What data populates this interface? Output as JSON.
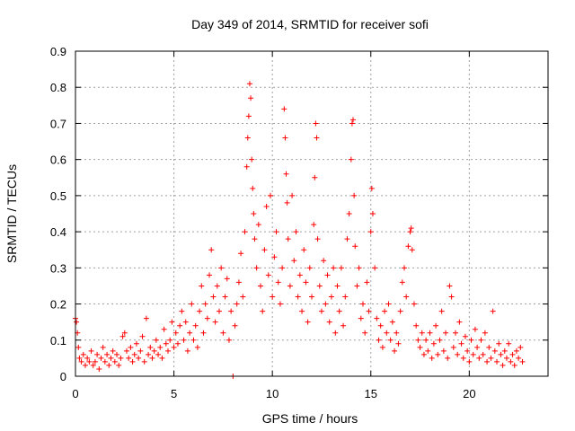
{
  "chart_data": {
    "type": "scatter",
    "title": "Day 349 of 2014, SRMTID for receiver sofi",
    "xlabel": "GPS time / hours",
    "ylabel": "SRMTID / TECUs",
    "xlim": [
      0,
      24
    ],
    "ylim": [
      0,
      0.9
    ],
    "x_ticks": [
      0,
      5,
      10,
      15,
      20
    ],
    "x_tick_labels": [
      "0",
      "5",
      "10",
      "15",
      "20"
    ],
    "y_ticks": [
      0,
      0.1,
      0.2,
      0.3,
      0.4,
      0.5,
      0.6,
      0.7,
      0.8,
      0.9
    ],
    "y_tick_labels": [
      "0",
      "0.1",
      "0.2",
      "0.3",
      "0.4",
      "0.5",
      "0.6",
      "0.7",
      "0.8",
      "0.9"
    ],
    "grid": true,
    "marker": "plus",
    "color": "#ff0000",
    "series": [
      {
        "name": "SRMTID",
        "points": [
          [
            0.0,
            0.16
          ],
          [
            0.05,
            0.15
          ],
          [
            0.1,
            0.12
          ],
          [
            0.15,
            0.08
          ],
          [
            0.2,
            0.05
          ],
          [
            0.3,
            0.04
          ],
          [
            0.4,
            0.06
          ],
          [
            0.5,
            0.03
          ],
          [
            0.6,
            0.05
          ],
          [
            0.7,
            0.04
          ],
          [
            0.8,
            0.07
          ],
          [
            0.9,
            0.03
          ],
          [
            1.0,
            0.04
          ],
          [
            1.1,
            0.06
          ],
          [
            1.2,
            0.02
          ],
          [
            1.3,
            0.05
          ],
          [
            1.4,
            0.08
          ],
          [
            1.5,
            0.04
          ],
          [
            1.6,
            0.06
          ],
          [
            1.7,
            0.03
          ],
          [
            1.8,
            0.05
          ],
          [
            1.9,
            0.07
          ],
          [
            2.0,
            0.04
          ],
          [
            2.1,
            0.06
          ],
          [
            2.2,
            0.03
          ],
          [
            2.3,
            0.05
          ],
          [
            2.4,
            0.11
          ],
          [
            2.5,
            0.12
          ],
          [
            2.6,
            0.07
          ],
          [
            2.7,
            0.05
          ],
          [
            2.8,
            0.08
          ],
          [
            2.9,
            0.04
          ],
          [
            3.0,
            0.06
          ],
          [
            3.1,
            0.09
          ],
          [
            3.2,
            0.05
          ],
          [
            3.3,
            0.07
          ],
          [
            3.4,
            0.11
          ],
          [
            3.5,
            0.04
          ],
          [
            3.6,
            0.16
          ],
          [
            3.7,
            0.06
          ],
          [
            3.8,
            0.08
          ],
          [
            3.9,
            0.05
          ],
          [
            4.0,
            0.07
          ],
          [
            4.1,
            0.1
          ],
          [
            4.2,
            0.06
          ],
          [
            4.3,
            0.08
          ],
          [
            4.4,
            0.05
          ],
          [
            4.5,
            0.13
          ],
          [
            4.6,
            0.09
          ],
          [
            4.7,
            0.07
          ],
          [
            4.8,
            0.1
          ],
          [
            4.9,
            0.15
          ],
          [
            5.0,
            0.08
          ],
          [
            5.1,
            0.12
          ],
          [
            5.2,
            0.09
          ],
          [
            5.3,
            0.14
          ],
          [
            5.4,
            0.18
          ],
          [
            5.5,
            0.1
          ],
          [
            5.6,
            0.15
          ],
          [
            5.7,
            0.07
          ],
          [
            5.8,
            0.12
          ],
          [
            5.9,
            0.2
          ],
          [
            6.0,
            0.1
          ],
          [
            6.1,
            0.14
          ],
          [
            6.2,
            0.08
          ],
          [
            6.3,
            0.18
          ],
          [
            6.4,
            0.25
          ],
          [
            6.5,
            0.12
          ],
          [
            6.6,
            0.2
          ],
          [
            6.7,
            0.16
          ],
          [
            6.8,
            0.28
          ],
          [
            6.9,
            0.35
          ],
          [
            7.0,
            0.22
          ],
          [
            7.1,
            0.15
          ],
          [
            7.2,
            0.25
          ],
          [
            7.3,
            0.18
          ],
          [
            7.4,
            0.3
          ],
          [
            7.5,
            0.12
          ],
          [
            7.6,
            0.22
          ],
          [
            7.7,
            0.27
          ],
          [
            7.8,
            0.1
          ],
          [
            7.9,
            0.18
          ],
          [
            8.0,
            0.0
          ],
          [
            8.1,
            0.14
          ],
          [
            8.2,
            0.2
          ],
          [
            8.3,
            0.26
          ],
          [
            8.4,
            0.34
          ],
          [
            8.5,
            0.22
          ],
          [
            8.6,
            0.4
          ],
          [
            8.7,
            0.58
          ],
          [
            8.75,
            0.66
          ],
          [
            8.8,
            0.72
          ],
          [
            8.85,
            0.81
          ],
          [
            8.9,
            0.77
          ],
          [
            8.95,
            0.6
          ],
          [
            9.0,
            0.52
          ],
          [
            9.05,
            0.45
          ],
          [
            9.1,
            0.38
          ],
          [
            9.2,
            0.3
          ],
          [
            9.3,
            0.42
          ],
          [
            9.4,
            0.25
          ],
          [
            9.5,
            0.18
          ],
          [
            9.6,
            0.35
          ],
          [
            9.7,
            0.47
          ],
          [
            9.8,
            0.28
          ],
          [
            9.9,
            0.5
          ],
          [
            10.0,
            0.22
          ],
          [
            10.1,
            0.33
          ],
          [
            10.2,
            0.4
          ],
          [
            10.3,
            0.26
          ],
          [
            10.4,
            0.2
          ],
          [
            10.5,
            0.3
          ],
          [
            10.6,
            0.74
          ],
          [
            10.65,
            0.66
          ],
          [
            10.7,
            0.56
          ],
          [
            10.75,
            0.48
          ],
          [
            10.8,
            0.38
          ],
          [
            10.9,
            0.25
          ],
          [
            11.0,
            0.5
          ],
          [
            11.1,
            0.32
          ],
          [
            11.2,
            0.4
          ],
          [
            11.3,
            0.22
          ],
          [
            11.4,
            0.28
          ],
          [
            11.5,
            0.18
          ],
          [
            11.6,
            0.35
          ],
          [
            11.7,
            0.26
          ],
          [
            11.8,
            0.15
          ],
          [
            11.9,
            0.3
          ],
          [
            12.0,
            0.22
          ],
          [
            12.1,
            0.42
          ],
          [
            12.15,
            0.55
          ],
          [
            12.2,
            0.7
          ],
          [
            12.25,
            0.66
          ],
          [
            12.3,
            0.38
          ],
          [
            12.4,
            0.25
          ],
          [
            12.5,
            0.18
          ],
          [
            12.6,
            0.32
          ],
          [
            12.7,
            0.2
          ],
          [
            12.8,
            0.28
          ],
          [
            12.9,
            0.15
          ],
          [
            13.0,
            0.22
          ],
          [
            13.1,
            0.3
          ],
          [
            13.2,
            0.12
          ],
          [
            13.3,
            0.25
          ],
          [
            13.4,
            0.18
          ],
          [
            13.5,
            0.3
          ],
          [
            13.6,
            0.14
          ],
          [
            13.7,
            0.22
          ],
          [
            13.8,
            0.38
          ],
          [
            13.9,
            0.45
          ],
          [
            14.0,
            0.6
          ],
          [
            14.05,
            0.7
          ],
          [
            14.1,
            0.71
          ],
          [
            14.15,
            0.5
          ],
          [
            14.2,
            0.36
          ],
          [
            14.3,
            0.25
          ],
          [
            14.4,
            0.3
          ],
          [
            14.5,
            0.16
          ],
          [
            14.6,
            0.2
          ],
          [
            14.7,
            0.12
          ],
          [
            14.8,
            0.26
          ],
          [
            14.9,
            0.18
          ],
          [
            15.0,
            0.4
          ],
          [
            15.05,
            0.52
          ],
          [
            15.1,
            0.45
          ],
          [
            15.2,
            0.3
          ],
          [
            15.3,
            0.16
          ],
          [
            15.4,
            0.1
          ],
          [
            15.5,
            0.14
          ],
          [
            15.6,
            0.08
          ],
          [
            15.7,
            0.18
          ],
          [
            15.8,
            0.12
          ],
          [
            15.9,
            0.2
          ],
          [
            16.0,
            0.1
          ],
          [
            16.1,
            0.15
          ],
          [
            16.2,
            0.07
          ],
          [
            16.3,
            0.12
          ],
          [
            16.4,
            0.09
          ],
          [
            16.5,
            0.18
          ],
          [
            16.6,
            0.26
          ],
          [
            16.7,
            0.3
          ],
          [
            16.8,
            0.22
          ],
          [
            16.9,
            0.36
          ],
          [
            17.0,
            0.4
          ],
          [
            17.05,
            0.41
          ],
          [
            17.1,
            0.35
          ],
          [
            17.2,
            0.2
          ],
          [
            17.3,
            0.14
          ],
          [
            17.4,
            0.1
          ],
          [
            17.5,
            0.08
          ],
          [
            17.6,
            0.12
          ],
          [
            17.7,
            0.06
          ],
          [
            17.8,
            0.1
          ],
          [
            17.9,
            0.07
          ],
          [
            18.0,
            0.12
          ],
          [
            18.1,
            0.05
          ],
          [
            18.2,
            0.09
          ],
          [
            18.3,
            0.14
          ],
          [
            18.4,
            0.06
          ],
          [
            18.5,
            0.1
          ],
          [
            18.6,
            0.18
          ],
          [
            18.7,
            0.07
          ],
          [
            18.8,
            0.12
          ],
          [
            18.9,
            0.05
          ],
          [
            19.0,
            0.25
          ],
          [
            19.1,
            0.22
          ],
          [
            19.2,
            0.08
          ],
          [
            19.3,
            0.12
          ],
          [
            19.4,
            0.06
          ],
          [
            19.5,
            0.15
          ],
          [
            19.6,
            0.09
          ],
          [
            19.7,
            0.05
          ],
          [
            19.8,
            0.11
          ],
          [
            19.9,
            0.07
          ],
          [
            20.0,
            0.04
          ],
          [
            20.1,
            0.1
          ],
          [
            20.2,
            0.06
          ],
          [
            20.3,
            0.13
          ],
          [
            20.4,
            0.08
          ],
          [
            20.5,
            0.05
          ],
          [
            20.6,
            0.1
          ],
          [
            20.7,
            0.06
          ],
          [
            20.8,
            0.12
          ],
          [
            20.9,
            0.04
          ],
          [
            21.0,
            0.08
          ],
          [
            21.1,
            0.05
          ],
          [
            21.2,
            0.18
          ],
          [
            21.3,
            0.07
          ],
          [
            21.4,
            0.04
          ],
          [
            21.5,
            0.09
          ],
          [
            21.6,
            0.06
          ],
          [
            21.7,
            0.03
          ],
          [
            21.8,
            0.07
          ],
          [
            21.9,
            0.05
          ],
          [
            22.0,
            0.09
          ],
          [
            22.1,
            0.04
          ],
          [
            22.2,
            0.06
          ],
          [
            22.3,
            0.03
          ],
          [
            22.4,
            0.07
          ],
          [
            22.5,
            0.05
          ],
          [
            22.6,
            0.08
          ],
          [
            22.7,
            0.04
          ]
        ]
      }
    ]
  }
}
